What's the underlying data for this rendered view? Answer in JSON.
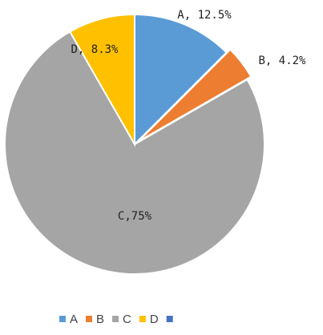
{
  "chart_data": {
    "type": "pie",
    "categories": [
      "A",
      "B",
      "C",
      "D",
      null
    ],
    "values": [
      12.5,
      4.2,
      75,
      8.3,
      null
    ],
    "value_labels": [
      "A, 12.5%",
      "B, 4.2%",
      "C,75%",
      "D, 8.3%",
      null
    ],
    "colors": [
      "#5b9bd5",
      "#ed7d31",
      "#a5a5a5",
      "#ffc000",
      "#4472c4"
    ],
    "legend": "bottom"
  }
}
